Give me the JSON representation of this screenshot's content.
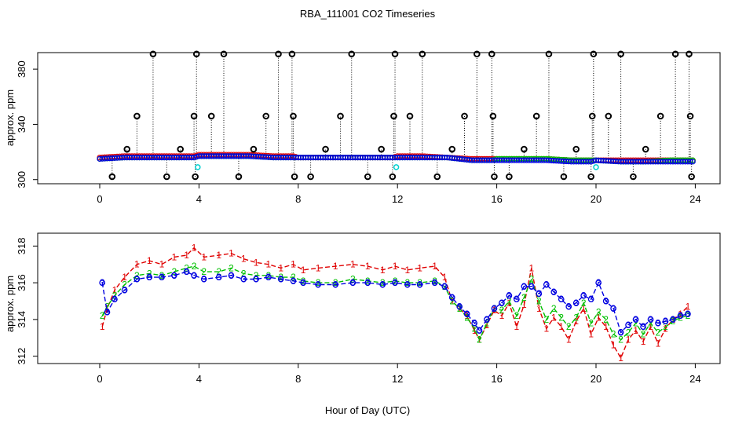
{
  "figure": {
    "title": "RBA_111001  CO2 Timeseries",
    "xlabel": "Hour of Day (UTC)"
  },
  "chart_data": [
    {
      "type": "scatter",
      "ylabel": "approx. ppm",
      "xlim": [
        -2.5,
        25
      ],
      "ylim": [
        297,
        392
      ],
      "xticks": [
        0,
        4,
        8,
        12,
        16,
        20,
        24
      ],
      "yticks": [
        300,
        340,
        380
      ],
      "xtick_labels": [
        "0",
        "4",
        "8",
        "12",
        "16",
        "20",
        "24"
      ],
      "ytick_labels": [
        "300",
        "340",
        "380"
      ],
      "legend": "none",
      "base_series": {
        "x": [
          0,
          1,
          2,
          3,
          3.8,
          4,
          5,
          6,
          7,
          7.8,
          8,
          9,
          10,
          11,
          11.8,
          12,
          13,
          14,
          15,
          15.8,
          16,
          17,
          18,
          19,
          19.8,
          20,
          21,
          22,
          23,
          23.8
        ],
        "y1": [
          316,
          317,
          317,
          317,
          317,
          318,
          318,
          318,
          317,
          317,
          316,
          316,
          316,
          316,
          316,
          317,
          317,
          316,
          315,
          315,
          315,
          315,
          315,
          314,
          314,
          314,
          314,
          314,
          314,
          314
        ],
        "y2": [
          315,
          316,
          316,
          316,
          316,
          317,
          317,
          317,
          316,
          316,
          316,
          316,
          316,
          316,
          316,
          316,
          316,
          316,
          314,
          314,
          315,
          315,
          315,
          314,
          314,
          314,
          313,
          313,
          314,
          314
        ],
        "y3": [
          315,
          316,
          316,
          316,
          316,
          317,
          317,
          317,
          316,
          316,
          316,
          316,
          316,
          316,
          316,
          316,
          316,
          316,
          314,
          314,
          314,
          314,
          314,
          313,
          313,
          314,
          313,
          313,
          313,
          313
        ]
      },
      "spikes": {
        "x": [
          0.5,
          1.1,
          1.5,
          2.15,
          2.7,
          3.25,
          3.8,
          3.85,
          3.9,
          4.5,
          5.0,
          5.6,
          6.2,
          6.7,
          7.2,
          7.75,
          7.8,
          7.85,
          8.5,
          9.1,
          9.7,
          10.15,
          10.8,
          11.35,
          11.8,
          11.85,
          11.9,
          12.5,
          13.0,
          13.6,
          14.2,
          14.7,
          15.2,
          15.8,
          15.85,
          15.9,
          16.5,
          17.1,
          17.6,
          18.1,
          18.7,
          19.2,
          19.8,
          19.85,
          19.9,
          20.5,
          21.0,
          21.5,
          22.0,
          22.6,
          23.2,
          23.75,
          23.8,
          23.85
        ],
        "y": [
          300,
          322,
          346,
          391,
          300,
          322,
          346,
          300,
          391,
          346,
          391,
          300,
          322,
          346,
          391,
          391,
          346,
          300,
          300,
          322,
          346,
          391,
          300,
          322,
          300,
          346,
          391,
          346,
          391,
          300,
          322,
          346,
          391,
          391,
          346,
          300,
          300,
          322,
          346,
          391,
          300,
          322,
          300,
          346,
          391,
          346,
          391,
          300,
          322,
          346,
          391,
          391,
          346,
          300
        ]
      },
      "cyan_points": {
        "x": [
          3.95,
          11.95,
          20.0
        ],
        "y": [
          309,
          309,
          309
        ]
      }
    },
    {
      "type": "line",
      "ylabel": "approx. ppm",
      "xlim": [
        -2.5,
        25
      ],
      "ylim": [
        311.6,
        318.7
      ],
      "xticks": [
        0,
        4,
        8,
        12,
        16,
        20,
        24
      ],
      "yticks": [
        312,
        314,
        316,
        318
      ],
      "xtick_labels": [
        "0",
        "4",
        "8",
        "12",
        "16",
        "20",
        "24"
      ],
      "ytick_labels": [
        "312",
        "314",
        "316",
        "318"
      ],
      "legend": "none",
      "series": [
        {
          "name": "1",
          "color": "#e00000",
          "x": [
            0.1,
            0.3,
            0.6,
            1.0,
            1.5,
            2.0,
            2.5,
            3.0,
            3.5,
            3.8,
            4.2,
            4.8,
            5.3,
            5.8,
            6.3,
            6.8,
            7.3,
            7.8,
            8.2,
            8.8,
            9.5,
            10.2,
            10.8,
            11.4,
            11.9,
            12.4,
            12.9,
            13.5,
            13.9,
            14.2,
            14.5,
            14.8,
            15.1,
            15.3,
            15.6,
            15.9,
            16.2,
            16.5,
            16.8,
            17.1,
            17.4,
            17.7,
            18.0,
            18.3,
            18.6,
            18.9,
            19.2,
            19.5,
            19.8,
            20.1,
            20.4,
            20.7,
            21.0,
            21.3,
            21.6,
            21.9,
            22.2,
            22.5,
            22.8,
            23.1,
            23.4,
            23.7
          ],
          "y": [
            313.6,
            314.6,
            315.6,
            316.3,
            317.0,
            317.2,
            317.0,
            317.4,
            317.5,
            317.9,
            317.4,
            317.5,
            317.6,
            317.3,
            317.1,
            317.0,
            316.8,
            317.0,
            316.7,
            316.8,
            316.9,
            317.0,
            316.9,
            316.7,
            316.9,
            316.7,
            316.8,
            316.9,
            316.3,
            315.0,
            314.6,
            314.2,
            313.4,
            312.9,
            313.7,
            314.5,
            314.2,
            314.9,
            313.6,
            314.8,
            316.8,
            314.6,
            313.5,
            314.1,
            313.6,
            312.9,
            313.9,
            314.6,
            313.2,
            314.1,
            313.6,
            312.6,
            311.9,
            312.9,
            313.4,
            312.8,
            313.6,
            312.7,
            313.5,
            314.0,
            314.3,
            314.7
          ]
        },
        {
          "name": "2",
          "color": "#00c000",
          "x": [
            0.1,
            0.3,
            0.6,
            1.0,
            1.5,
            2.0,
            2.5,
            3.0,
            3.5,
            3.8,
            4.2,
            4.8,
            5.3,
            5.8,
            6.3,
            6.8,
            7.3,
            7.8,
            8.2,
            8.8,
            9.5,
            10.2,
            10.8,
            11.4,
            11.9,
            12.4,
            12.9,
            13.5,
            13.9,
            14.2,
            14.5,
            14.8,
            15.1,
            15.3,
            15.6,
            15.9,
            16.2,
            16.5,
            16.8,
            17.1,
            17.4,
            17.7,
            18.0,
            18.3,
            18.6,
            18.9,
            19.2,
            19.5,
            19.8,
            20.1,
            20.4,
            20.7,
            21.0,
            21.3,
            21.6,
            21.9,
            22.2,
            22.5,
            22.8,
            23.1,
            23.4,
            23.7
          ],
          "y": [
            314.2,
            314.7,
            315.3,
            315.9,
            316.4,
            316.5,
            316.4,
            316.6,
            316.8,
            316.9,
            316.6,
            316.6,
            316.8,
            316.5,
            316.4,
            316.4,
            316.3,
            316.3,
            316.1,
            316.0,
            316.0,
            316.2,
            316.1,
            316.0,
            316.1,
            316.0,
            316.0,
            316.1,
            315.8,
            315.0,
            314.6,
            314.1,
            313.5,
            312.9,
            313.8,
            314.6,
            314.5,
            315.0,
            314.2,
            315.2,
            316.2,
            315.0,
            314.0,
            314.6,
            314.1,
            313.6,
            314.1,
            314.9,
            313.8,
            314.4,
            314.0,
            313.2,
            312.9,
            313.3,
            313.8,
            313.2,
            313.8,
            313.3,
            313.6,
            313.9,
            314.1,
            314.2
          ]
        },
        {
          "name": "3",
          "color": "#0000e0",
          "x": [
            0.1,
            0.3,
            0.6,
            1.0,
            1.5,
            2.0,
            2.5,
            3.0,
            3.5,
            3.8,
            4.2,
            4.8,
            5.3,
            5.8,
            6.3,
            6.8,
            7.3,
            7.8,
            8.2,
            8.8,
            9.5,
            10.2,
            10.8,
            11.4,
            11.9,
            12.4,
            12.9,
            13.5,
            13.9,
            14.2,
            14.5,
            14.8,
            15.1,
            15.3,
            15.6,
            15.9,
            16.2,
            16.5,
            16.8,
            17.1,
            17.4,
            17.7,
            18.0,
            18.3,
            18.6,
            18.9,
            19.2,
            19.5,
            19.8,
            20.1,
            20.4,
            20.7,
            21.0,
            21.3,
            21.6,
            21.9,
            22.2,
            22.5,
            22.8,
            23.1,
            23.4,
            23.7
          ],
          "y": [
            316.0,
            314.4,
            315.1,
            315.6,
            316.2,
            316.3,
            316.3,
            316.4,
            316.6,
            316.4,
            316.2,
            316.3,
            316.4,
            316.2,
            316.2,
            316.3,
            316.2,
            316.1,
            316.0,
            315.9,
            315.9,
            316.0,
            316.0,
            315.9,
            316.0,
            315.9,
            315.9,
            316.0,
            315.8,
            315.2,
            314.7,
            314.3,
            313.8,
            313.4,
            314.0,
            314.6,
            314.9,
            315.3,
            315.1,
            315.8,
            315.8,
            315.4,
            315.9,
            315.5,
            315.1,
            314.7,
            314.9,
            315.3,
            315.1,
            316.0,
            315.0,
            314.6,
            313.3,
            313.7,
            314.0,
            313.6,
            314.0,
            313.8,
            313.9,
            314.0,
            314.2,
            314.3
          ]
        }
      ]
    }
  ]
}
